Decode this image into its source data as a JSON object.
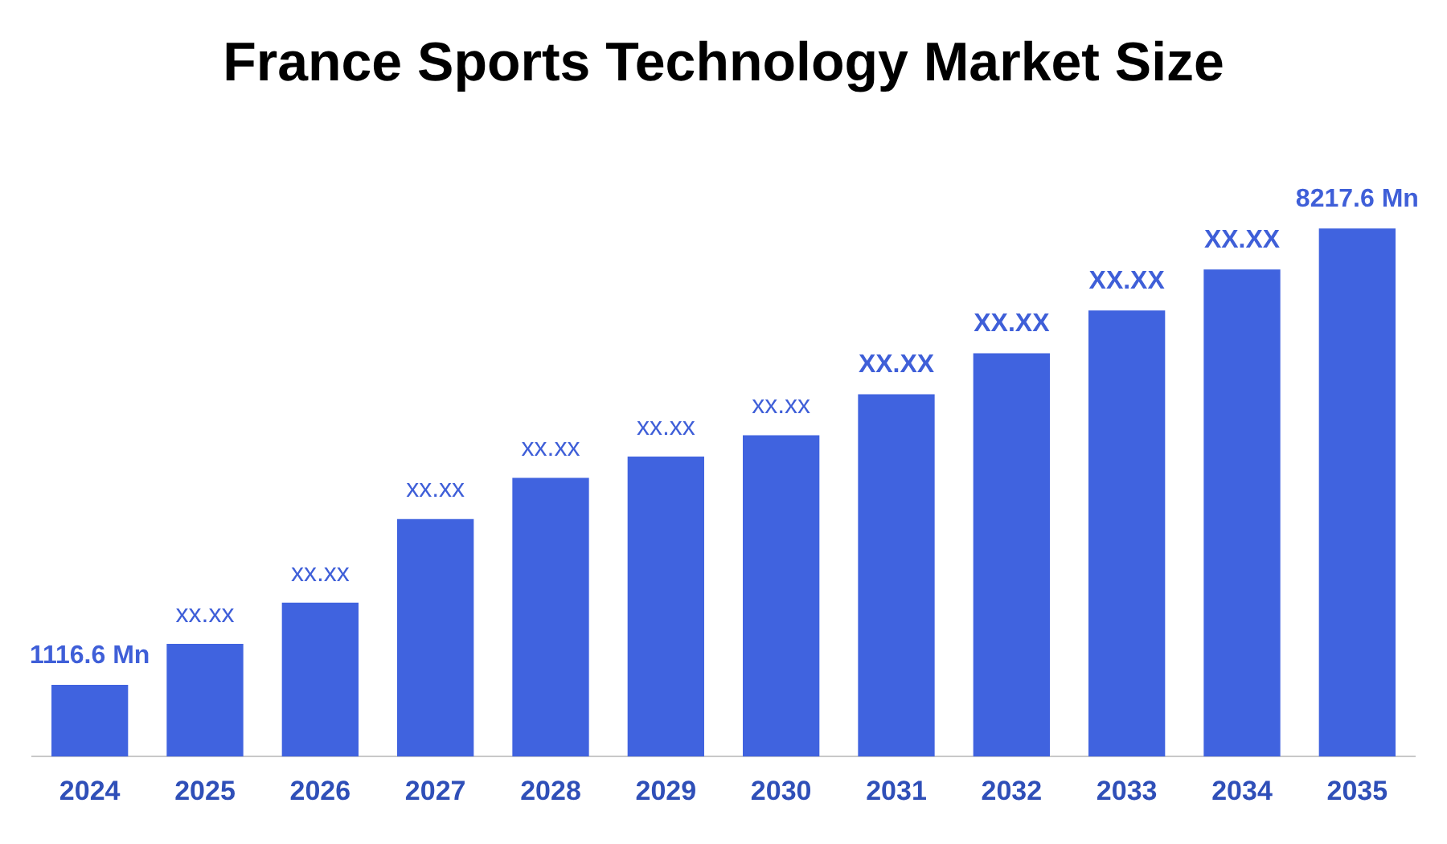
{
  "chart_data": {
    "type": "bar",
    "title": "France Sports Technology Market Size",
    "categories": [
      "2024",
      "2025",
      "2026",
      "2027",
      "2028",
      "2029",
      "2030",
      "2031",
      "2032",
      "2033",
      "2034",
      "2035"
    ],
    "values": [
      1116.6,
      1755,
      2393,
      3696,
      4335,
      4667,
      4998,
      5637,
      6276,
      6940,
      7578,
      8217.6
    ],
    "value_labels": [
      "1116.6 Mn",
      "xx.xx",
      "xx.xx",
      "xx.xx",
      "xx.xx",
      "xx.xx",
      "xx.xx",
      "XX.XX",
      "XX.XX",
      "XX.XX",
      "XX.XX",
      "8217.6 Mn"
    ],
    "color": "#4063df",
    "grid": false,
    "legend": false
  }
}
